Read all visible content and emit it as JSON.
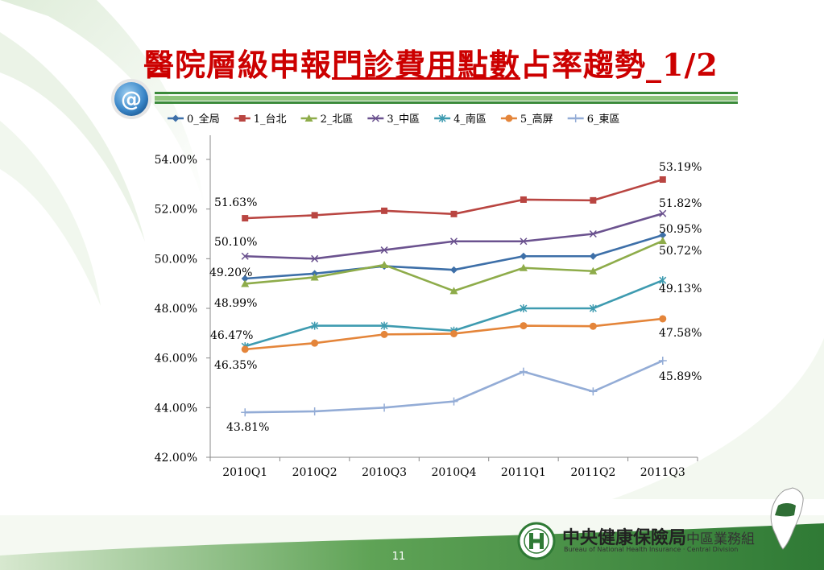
{
  "slide": {
    "title_part1": "醫院層級申報",
    "title_part2": "門診費用點數",
    "title_part3": "占率趨勢_1/2",
    "badge_symbol": "@",
    "page_number": "11"
  },
  "logo": {
    "name": "中央健康保險局",
    "division": "中區業務組",
    "english": "Bureau of National Health Insurance · Central Division"
  },
  "colors": {
    "title": "#cc0000",
    "accent_green": "#3a8a3a"
  },
  "chart_data": {
    "type": "line",
    "categories": [
      "2010Q1",
      "2010Q2",
      "2010Q3",
      "2010Q4",
      "2011Q1",
      "2011Q2",
      "2011Q3"
    ],
    "ylim": [
      42,
      54
    ],
    "yticks": [
      42,
      44,
      46,
      48,
      50,
      52,
      54
    ],
    "ytick_labels": [
      "42.00%",
      "44.00%",
      "46.00%",
      "48.00%",
      "50.00%",
      "52.00%",
      "54.00%"
    ],
    "legend_position": "top",
    "grid": false,
    "series": [
      {
        "name": "0_全局",
        "color": "#3d6fa8",
        "marker": "diamond",
        "values": [
          49.2,
          49.4,
          49.7,
          49.55,
          50.1,
          50.1,
          50.95
        ],
        "labels": {
          "0": "49.20%",
          "6": "50.95%"
        }
      },
      {
        "name": "1_台北",
        "color": "#b94541",
        "marker": "square",
        "values": [
          51.63,
          51.75,
          51.93,
          51.8,
          52.38,
          52.35,
          53.19
        ],
        "labels": {
          "0": "51.63%",
          "6": "53.19%"
        }
      },
      {
        "name": "2_北區",
        "color": "#8eac4a",
        "marker": "triangle",
        "values": [
          48.99,
          49.25,
          49.75,
          48.7,
          49.63,
          49.5,
          50.72
        ],
        "labels": {
          "0": "48.99%",
          "6": "50.72%"
        }
      },
      {
        "name": "3_中區",
        "color": "#6b528f",
        "marker": "x",
        "values": [
          50.1,
          50.0,
          50.35,
          50.7,
          50.7,
          51.0,
          51.82
        ],
        "labels": {
          "0": "50.10%",
          "6": "51.82%"
        }
      },
      {
        "name": "4_南區",
        "color": "#3e9bb0",
        "marker": "star",
        "values": [
          46.47,
          47.3,
          47.3,
          47.1,
          48.0,
          48.0,
          49.13
        ],
        "labels": {
          "0": "46.47%",
          "6": "49.13%"
        }
      },
      {
        "name": "5_高屏",
        "color": "#e4853a",
        "marker": "circle",
        "values": [
          46.35,
          46.6,
          46.95,
          46.98,
          47.3,
          47.28,
          47.58
        ],
        "labels": {
          "0": "46.35%",
          "6": "47.58%"
        }
      },
      {
        "name": "6_東區",
        "color": "#93acd6",
        "marker": "plus",
        "values": [
          43.81,
          43.85,
          44.0,
          44.25,
          45.45,
          44.65,
          45.89
        ],
        "labels": {
          "0": "43.81%",
          "6": "45.89%"
        }
      }
    ]
  }
}
